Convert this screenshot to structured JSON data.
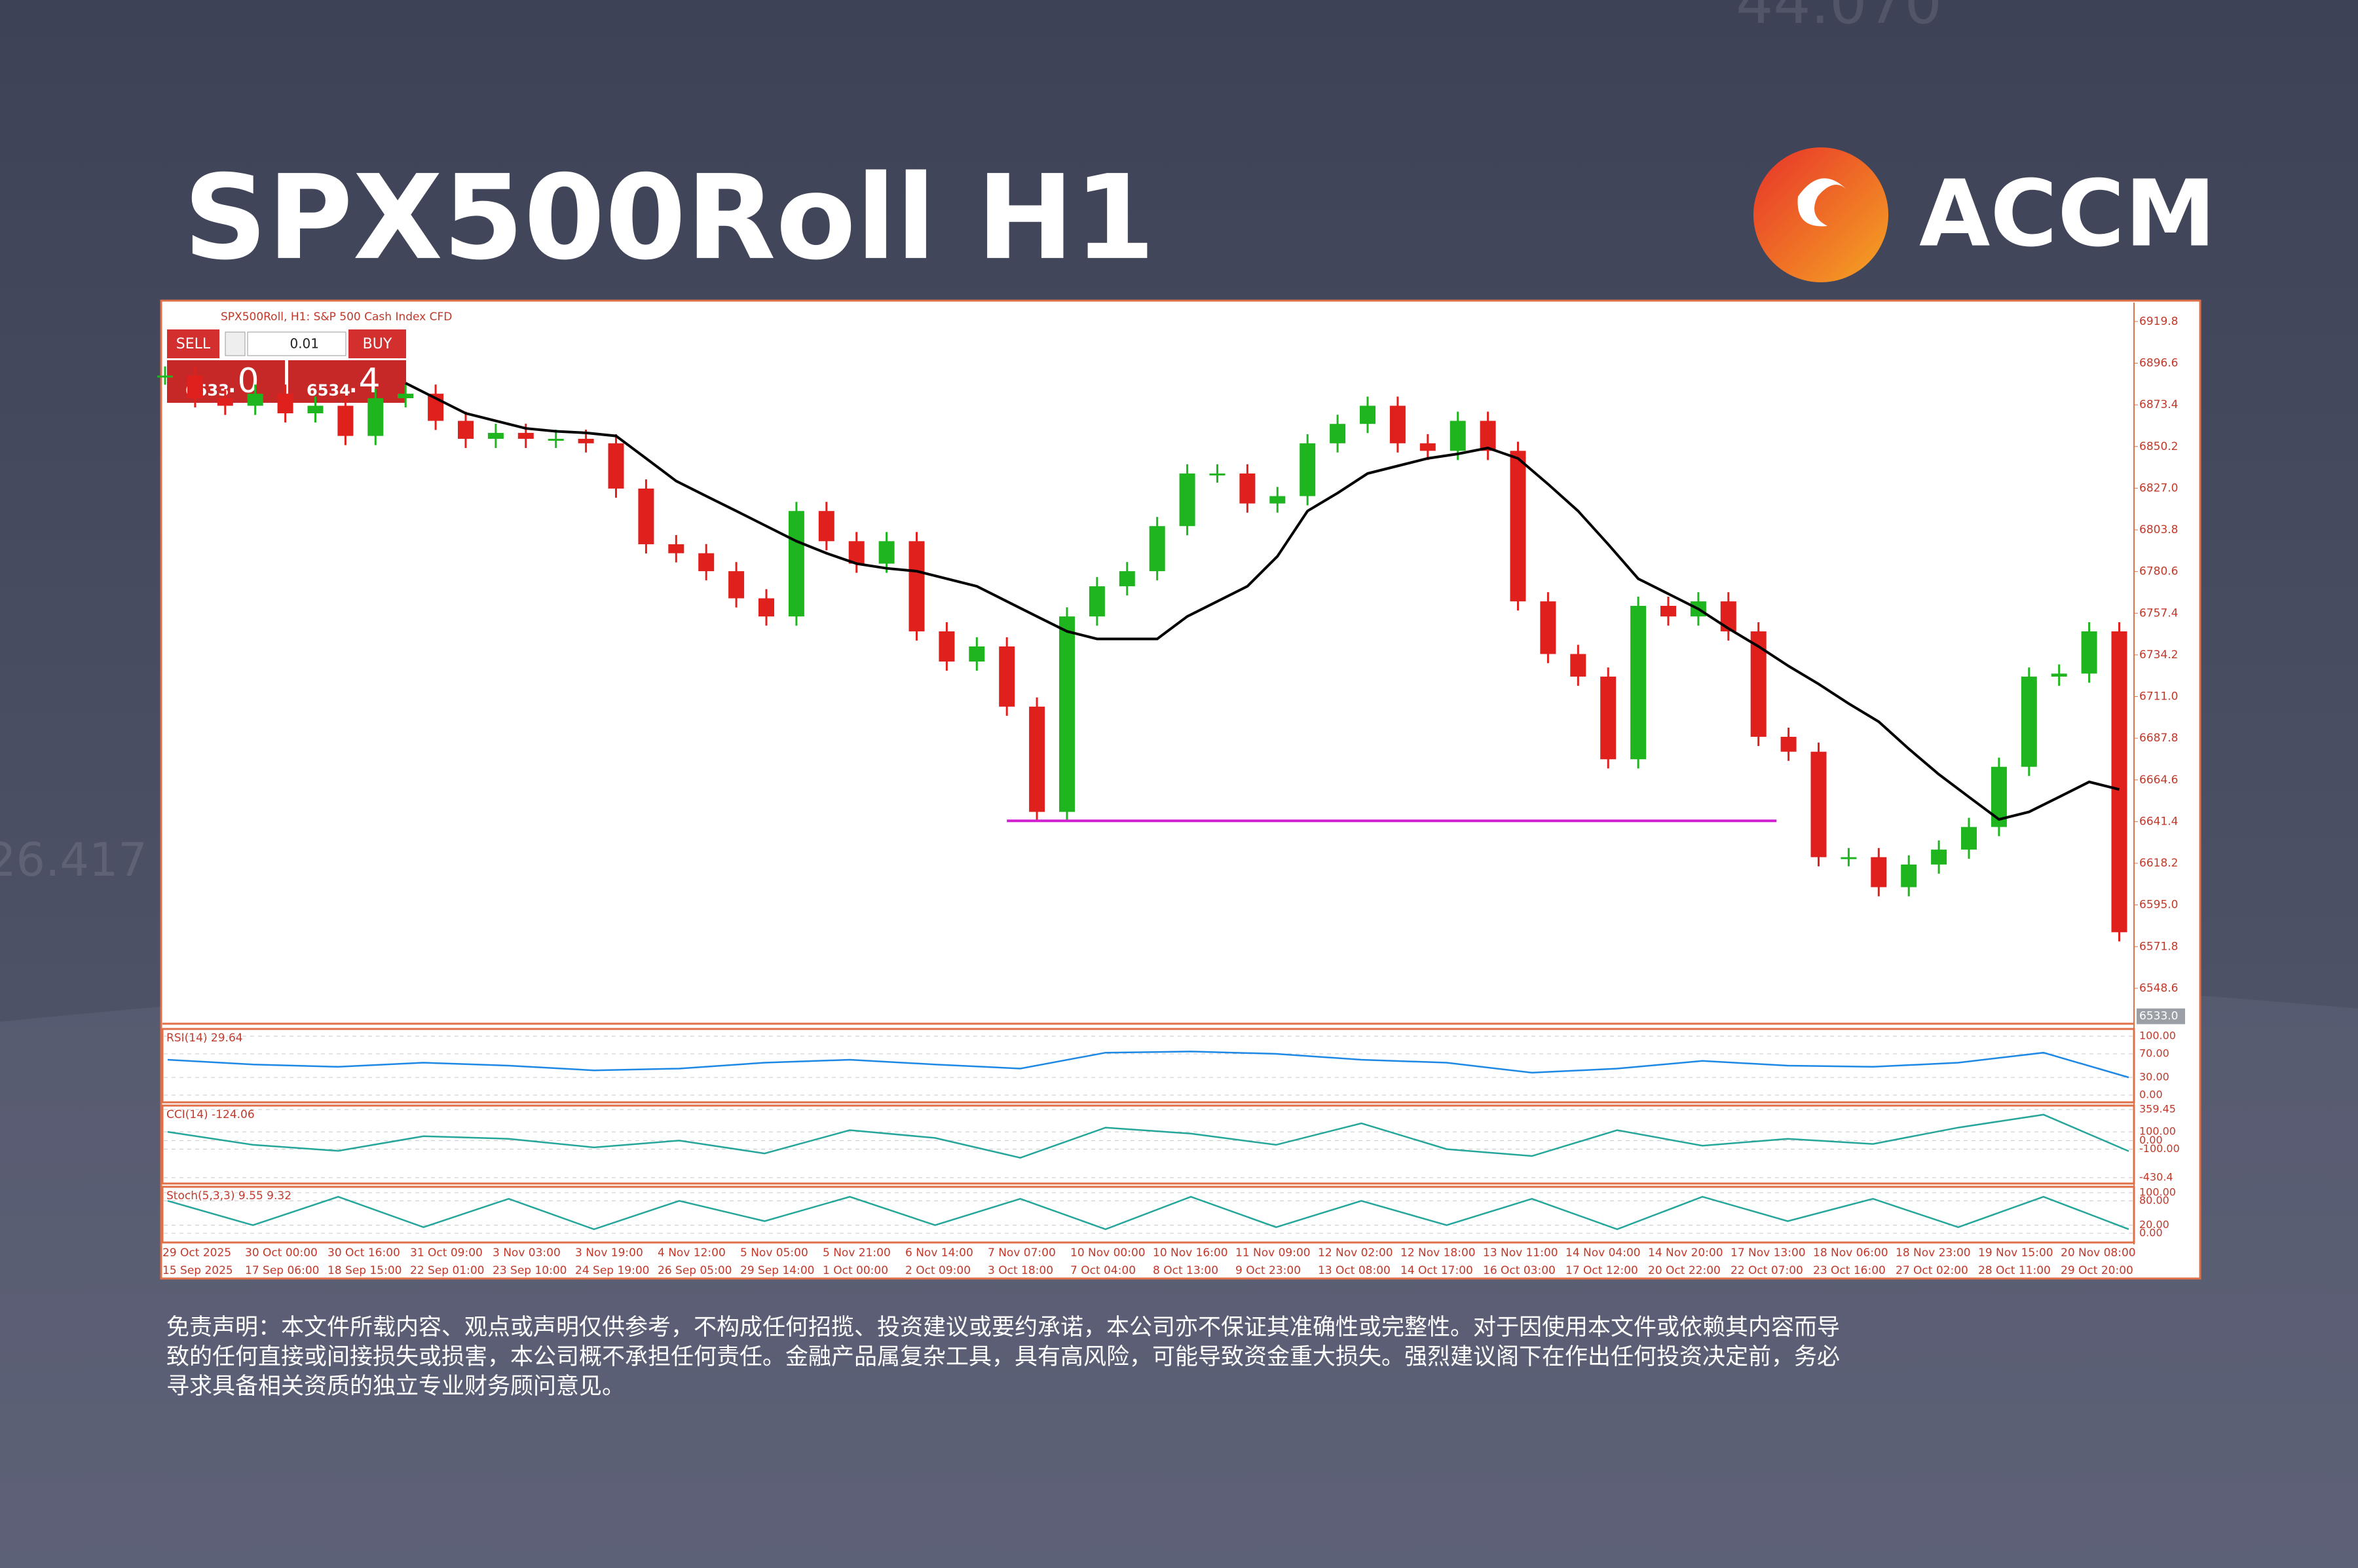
{
  "header": {
    "title": "SPX500Roll H1",
    "logo_text": "ACCM",
    "background_numbers": [
      "44.070",
      "26.417"
    ]
  },
  "terminal": {
    "symbol_caption": "SPX500Roll, H1:  S&P 500 Cash Index CFD",
    "sell": "SELL",
    "buy": "BUY",
    "volume": "0.01",
    "sell_price_main": "6533",
    "sell_price_big": ".0",
    "buy_price_main": "6534",
    "buy_price_big": ".4"
  },
  "chart_data": {
    "type": "candlestick",
    "values": [
      6889.7,
      6877.1,
      6872.9,
      6879.6,
      6868.7,
      6872.9,
      6856.1,
      6877.1,
      6879.6,
      6864.5,
      6854.5,
      6857.8,
      6854.5,
      6854.5,
      6852.0,
      6826.8,
      6795.8,
      6790.8,
      6780.8,
      6765.7,
      6755.6,
      6814.3,
      6797.5,
      6785.0,
      6797.5,
      6747.3,
      6730.5,
      6738.9,
      6705.4,
      6646.8,
      6755.6,
      6772.4,
      6780.8,
      6805.9,
      6835.2,
      6835.2,
      6818.5,
      6822.6,
      6852.0,
      6862.8,
      6872.9,
      6852.0,
      6847.8,
      6864.5,
      6847.8,
      6764.0,
      6734.7,
      6722.1,
      6676.1,
      6761.5,
      6755.6,
      6764.0,
      6747.3,
      6688.6,
      6680.3,
      6621.6,
      6621.6,
      6604.9,
      6617.5,
      6625.8,
      6638.4,
      6671.9,
      6722.1,
      6723.8,
      6747.3,
      6579.8
    ],
    "color_up": "#1fb51f",
    "color_down": "#e0201c",
    "moving_average": {
      "color": "#000000",
      "values": [
        null,
        null,
        null,
        null,
        null,
        null,
        null,
        null,
        6885.5,
        6877.1,
        6868.7,
        6864.5,
        6860.3,
        6858.7,
        6857.8,
        6856.1,
        6843.6,
        6831.0,
        6822.6,
        6814.3,
        6805.9,
        6797.5,
        6790.8,
        6785.0,
        6782.4,
        6780.8,
        6776.6,
        6772.4,
        6764.0,
        6755.6,
        6747.3,
        6743.1,
        6743.1,
        6743.1,
        6755.6,
        6764.0,
        6772.4,
        6789.1,
        6814.3,
        6824.3,
        6835.2,
        6839.4,
        6843.6,
        6846.1,
        6849.4,
        6843.6,
        6829.3,
        6814.3,
        6795.8,
        6776.6,
        6768.2,
        6759.8,
        6748.9,
        6738.9,
        6728.0,
        6718.0,
        6707.1,
        6697.0,
        6681.9,
        6667.7,
        6655.1,
        6642.6,
        6646.8,
        6655.1,
        6663.5,
        6659.3
      ]
    },
    "level": {
      "value": 6641.8,
      "x_range": [
        28,
        53.6
      ],
      "color": "#d020d0"
    },
    "last_price": {
      "value": 6533,
      "label": "6533.0"
    },
    "ylim": [
      6529.6,
      6929.6
    ],
    "yticks": [
      6919.8,
      6896.6,
      6873.4,
      6850.2,
      {
        "value": 6827,
        "label": "6827.0"
      },
      6803.8,
      6780.6,
      6757.4,
      6734.2,
      {
        "value": 6711,
        "label": "6711.0"
      },
      6687.8,
      6664.6,
      6641.4,
      6618.2,
      {
        "value": 6595,
        "label": "6595.0"
      },
      6571.8,
      6548.6
    ],
    "time_labels": [
      "29 Oct 2025",
      "30 Oct 00:00",
      "30 Oct 16:00",
      "31 Oct 09:00",
      "3 Nov 03:00",
      "3 Nov 19:00",
      "4 Nov 12:00",
      "5 Nov 05:00",
      "5 Nov 21:00",
      "6 Nov 14:00",
      "7 Nov 07:00",
      "10 Nov 00:00",
      "10 Nov 16:00",
      "11 Nov 09:00",
      "12 Nov 02:00",
      "12 Nov 18:00",
      "13 Nov 11:00",
      "14 Nov 04:00",
      "14 Nov 20:00",
      "17 Nov 13:00",
      "18 Nov 06:00",
      "18 Nov 23:00",
      "19 Nov 15:00",
      "20 Nov 08:00"
    ],
    "time_labels_2": [
      "15 Sep 2025",
      "17 Sep 06:00",
      "18 Sep 15:00",
      "22 Sep 01:00",
      "23 Sep 10:00",
      "24 Sep 19:00",
      "26 Sep 05:00",
      "29 Sep 14:00",
      "1 Oct 00:00",
      "2 Oct 09:00",
      "3 Oct 18:00",
      "7 Oct 04:00",
      "8 Oct 13:00",
      "9 Oct 23:00",
      "13 Oct 08:00",
      "14 Oct 17:00",
      "16 Oct 03:00",
      "17 Oct 12:00",
      "20 Oct 22:00",
      "22 Oct 07:00",
      "23 Oct 16:00",
      "27 Oct 02:00",
      "28 Oct 11:00",
      "29 Oct 20:00"
    ]
  },
  "indicators": [
    {
      "label": "RSI(14) 29.64",
      "color": "#1e88e5",
      "ylim": [
        0,
        100
      ],
      "yticks": [
        {
          "value": 100,
          "label": "100.00"
        },
        {
          "value": 70,
          "label": "70.00"
        },
        {
          "value": 30,
          "label": "30.00"
        },
        {
          "value": 0,
          "label": "0.00"
        }
      ],
      "values": [
        60,
        52,
        48,
        55,
        50,
        42,
        45,
        55,
        60,
        52,
        45,
        72,
        74,
        70,
        60,
        55,
        38,
        45,
        58,
        50,
        48,
        55,
        72,
        30
      ]
    },
    {
      "label": "CCI(14) -124.06",
      "color": "#26a69a",
      "ylim": [
        -430.4,
        359.45
      ],
      "yticks": [
        359.45,
        {
          "value": 100,
          "label": "100.00"
        },
        {
          "value": 0,
          "label": "0.00"
        },
        {
          "value": -100,
          "label": "-100.00"
        },
        -430.4
      ],
      "values": [
        100,
        -50,
        -120,
        50,
        20,
        -80,
        0,
        -150,
        120,
        30,
        -200,
        150,
        80,
        -50,
        200,
        -100,
        -180,
        120,
        -60,
        20,
        -40,
        150,
        300,
        -124
      ]
    },
    {
      "label": "Stoch(5,3,3) 9.55 9.32",
      "color": "#26a69a",
      "ylim": [
        0,
        100
      ],
      "yticks": [
        {
          "value": 100,
          "label": "100.00"
        },
        {
          "value": 80,
          "label": "80.00"
        },
        {
          "value": 20,
          "label": "20.00"
        },
        {
          "value": 0,
          "label": "0.00"
        }
      ],
      "values": [
        80,
        20,
        90,
        15,
        85,
        10,
        80,
        30,
        90,
        20,
        85,
        10,
        90,
        15,
        80,
        20,
        85,
        10,
        90,
        30,
        85,
        15,
        90,
        10
      ]
    }
  ],
  "disclaimer": [
    "免责声明：本文件所载内容、观点或声明仅供参考，不构成任何招揽、投资建议或要约承诺，本公司亦不保证其准确性或完整性。对于因使用本文件或依赖其内容而导",
    "致的任何直接或间接损失或损害，本公司概不承担任何责任。金融产品属复杂工具，具有高风险，可能导致资金重大损失。强烈建议阁下在作出任何投资决定前，务必",
    "寻求具备相关资质的独立专业财务顾问意见。"
  ]
}
